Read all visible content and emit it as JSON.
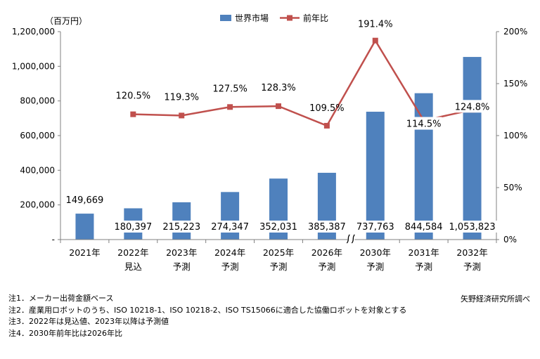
{
  "chart_data": {
    "type": "bar",
    "unit_label": "（百万円）",
    "categories": [
      {
        "line1": "2021年",
        "line2": ""
      },
      {
        "line1": "2022年",
        "line2": "見込"
      },
      {
        "line1": "2023年",
        "line2": "予測"
      },
      {
        "line1": "2024年",
        "line2": "予測"
      },
      {
        "line1": "2025年",
        "line2": "予測"
      },
      {
        "line1": "2026年",
        "line2": "予測"
      },
      {
        "line1": "2030年",
        "line2": "予測"
      },
      {
        "line1": "2031年",
        "line2": "予測"
      },
      {
        "line1": "2032年",
        "line2": "予測"
      }
    ],
    "series": [
      {
        "name": "世界市場",
        "axis": "left",
        "color": "#4f81bd",
        "values": [
          149669,
          180397,
          215223,
          274347,
          352031,
          385387,
          737763,
          844584,
          1053823
        ],
        "labels": [
          "149,669",
          "180,397",
          "215,223",
          "274,347",
          "352,031",
          "385,387",
          "737,763",
          "844,584",
          "1,053,823"
        ]
      },
      {
        "name": "前年比",
        "axis": "right",
        "color": "#c0504d",
        "values": [
          null,
          120.5,
          119.3,
          127.5,
          128.3,
          109.5,
          191.4,
          114.5,
          124.8
        ],
        "labels": [
          "",
          "120.5%",
          "119.3%",
          "127.5%",
          "128.3%",
          "109.5%",
          "191.4%",
          "114.5%",
          "124.8%"
        ]
      }
    ],
    "y_left": {
      "min": 0,
      "max": 1200000,
      "ticks": [
        "-",
        "200,000",
        "400,000",
        "600,000",
        "800,000",
        "1,000,000",
        "1,200,000"
      ]
    },
    "y_right": {
      "min": 0,
      "max": 200,
      "ticks": [
        "0%",
        "50%",
        "100%",
        "150%",
        "200%"
      ]
    },
    "axis_break_after_category": "2026年",
    "legend_position": "top",
    "grid": false
  },
  "notes": [
    "注1．メーカー出荷金額ベース",
    "注2．産業用ロボットのうち、ISO 10218-1、ISO 10218-2、ISO TS15066に適合した協働ロボットを対象とする",
    "注3．2022年は見込値、2023年以降は予測値",
    "注4．2030年前年比は2026年比"
  ],
  "source": "矢野経済研究所調べ"
}
